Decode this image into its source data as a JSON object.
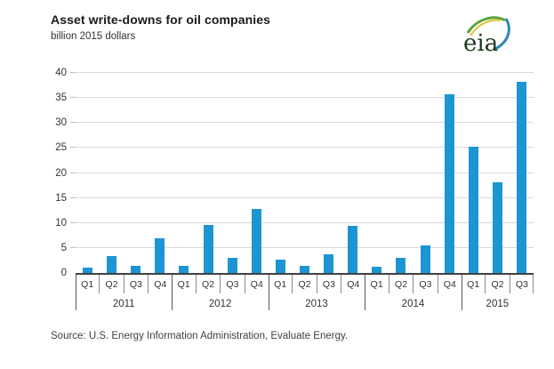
{
  "header": {
    "title": "Asset write-downs for oil companies",
    "subtitle": "billion 2015 dollars"
  },
  "logo": {
    "text": "eia"
  },
  "chart_data": {
    "type": "bar",
    "title": "Asset write-downs for oil companies",
    "ylabel": "billion 2015 dollars",
    "xlabel": "",
    "ylim": [
      0,
      40
    ],
    "yticks": [
      0,
      5,
      10,
      15,
      20,
      25,
      30,
      35,
      40
    ],
    "grid": true,
    "legend_position": "none",
    "bar_color": "#1e95d3",
    "categories": [
      "2011 Q1",
      "2011 Q2",
      "2011 Q3",
      "2011 Q4",
      "2012 Q1",
      "2012 Q2",
      "2012 Q3",
      "2012 Q4",
      "2013 Q1",
      "2013 Q2",
      "2013 Q3",
      "2013 Q4",
      "2014 Q1",
      "2014 Q2",
      "2014 Q3",
      "2014 Q4",
      "2015 Q1",
      "2015 Q2",
      "2015 Q3"
    ],
    "values": [
      1.0,
      3.3,
      1.5,
      7.0,
      1.5,
      9.6,
      3.0,
      12.8,
      2.7,
      1.4,
      3.7,
      9.4,
      1.3,
      3.1,
      5.6,
      35.7,
      25.3,
      18.2,
      38.2
    ],
    "years": [
      {
        "label": "2011",
        "quarters": [
          "Q1",
          "Q2",
          "Q3",
          "Q4"
        ]
      },
      {
        "label": "2012",
        "quarters": [
          "Q1",
          "Q2",
          "Q3",
          "Q4"
        ]
      },
      {
        "label": "2013",
        "quarters": [
          "Q1",
          "Q2",
          "Q3",
          "Q4"
        ]
      },
      {
        "label": "2014",
        "quarters": [
          "Q1",
          "Q2",
          "Q3",
          "Q4"
        ]
      },
      {
        "label": "2015",
        "quarters": [
          "Q1",
          "Q2",
          "Q3"
        ]
      }
    ]
  },
  "source": {
    "text": "Source:  U.S. Energy Information Administration, Evaluate Energy."
  },
  "colors": {
    "bar": "#1e95d3",
    "gridline": "#d9d9d9",
    "axis": "#3f3f3f",
    "text": "#333333",
    "logo_green": "#58a33e",
    "logo_yellow": "#d9c22b",
    "logo_blue": "#2f86b9",
    "logo_text": "#1c3a1c"
  }
}
